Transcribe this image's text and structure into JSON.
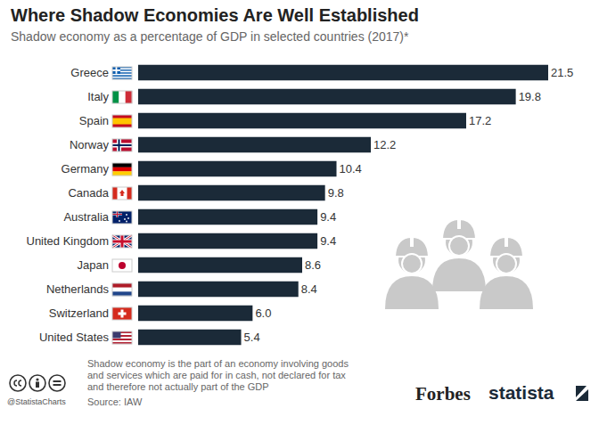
{
  "chart_data": {
    "type": "bar",
    "orientation": "horizontal",
    "title": "Where Shadow Economies Are Well Established",
    "subtitle": "Shadow economy as a percentage of GDP in selected countries (2017)*",
    "categories": [
      "Greece",
      "Italy",
      "Spain",
      "Norway",
      "Germany",
      "Canada",
      "Australia",
      "United Kingdom",
      "Japan",
      "Netherlands",
      "Switzerland",
      "United States"
    ],
    "values": [
      21.5,
      19.8,
      17.2,
      12.2,
      10.4,
      9.8,
      9.4,
      9.4,
      8.6,
      8.4,
      6.0,
      5.4
    ],
    "value_labels": [
      "21.5",
      "19.8",
      "17.2",
      "12.2",
      "10.4",
      "9.8",
      "9.4",
      "9.4",
      "8.6",
      "8.4",
      "6.0",
      "5.4"
    ],
    "color": "#1b2a38",
    "xlim": [
      0,
      21.5
    ],
    "data_labels": true,
    "tick_labels": "y",
    "grid": false,
    "note": "Shadow economy is the part of an economy involving goods and services which are paid for in cash, not declared for tax and therefore not actually part of the GDP",
    "source": "Source: IAW",
    "credit": "@StatistaCharts",
    "logos": [
      "Forbes",
      "statista"
    ]
  }
}
